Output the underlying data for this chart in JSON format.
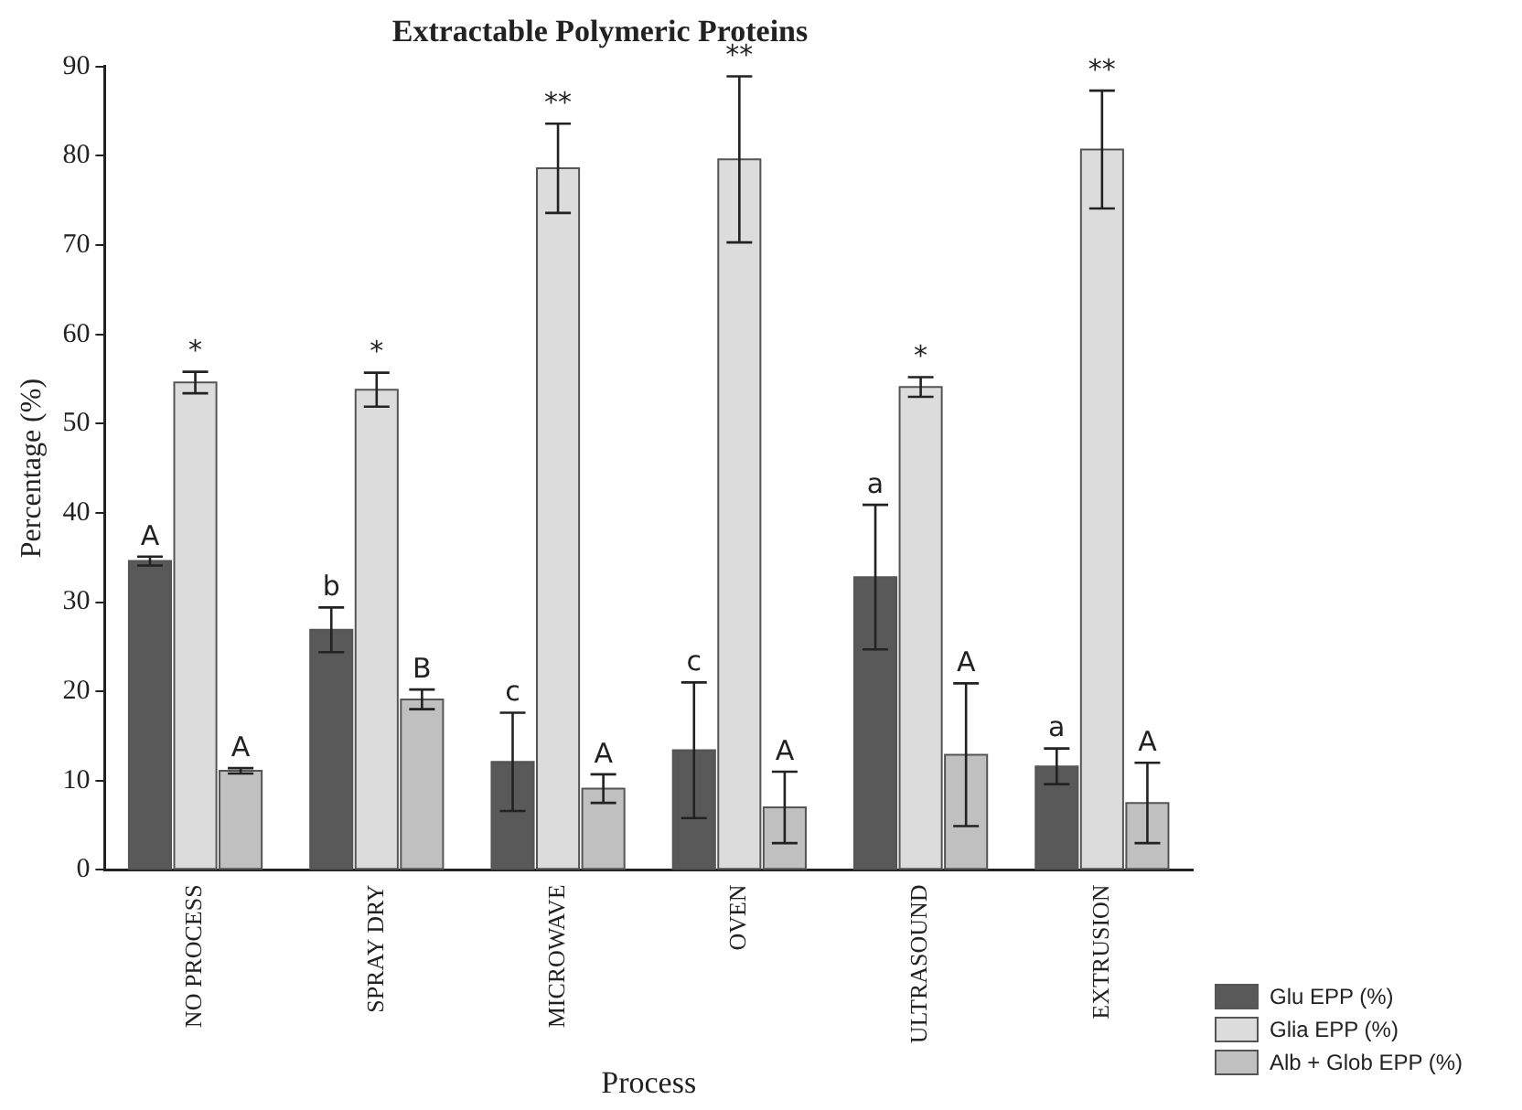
{
  "chart_data": {
    "type": "bar",
    "title": "Extractable Polymeric Proteins",
    "xlabel": "Process",
    "ylabel": "Percentage (%)",
    "categories": [
      "NO PROCESS",
      "SPRAY DRY",
      "MICROWAVE",
      "OVEN",
      "ULTRASOUND",
      "EXTRUSION"
    ],
    "series": [
      {
        "name": "Glu EPP (%)",
        "color": "#595959",
        "values": [
          34.6,
          26.9,
          12.1,
          13.4,
          32.8,
          11.6
        ],
        "errors": [
          0.5,
          2.5,
          5.5,
          7.6,
          8.1,
          2
        ],
        "value_labels": [
          "A",
          "b",
          "c",
          "c",
          "a",
          "a"
        ]
      },
      {
        "name": "Glia EPP (%)",
        "color": "#dcdcdc",
        "values": [
          54.6,
          53.8,
          78.6,
          79.6,
          54.1,
          80.7
        ],
        "errors": [
          1.2,
          1.9,
          5,
          9.3,
          1.1,
          6.6
        ],
        "value_labels": [
          "*",
          "*",
          "**",
          "**",
          "*",
          "**"
        ]
      },
      {
        "name": "Alb + Glob EPP (%)",
        "color": "#c0c0c0",
        "values": [
          11.1,
          19.1,
          9.1,
          7,
          12.9,
          7.5
        ],
        "errors": [
          0.3,
          1.1,
          1.6,
          4,
          8,
          4.5
        ],
        "value_labels": [
          "A",
          "B",
          "A",
          "A",
          "A",
          "A"
        ]
      }
    ],
    "ylim": [
      0,
      90
    ],
    "yticks": [
      0,
      10,
      20,
      30,
      40,
      50,
      60,
      70,
      80,
      90
    ],
    "grid": false,
    "legend": "bottom right"
  }
}
